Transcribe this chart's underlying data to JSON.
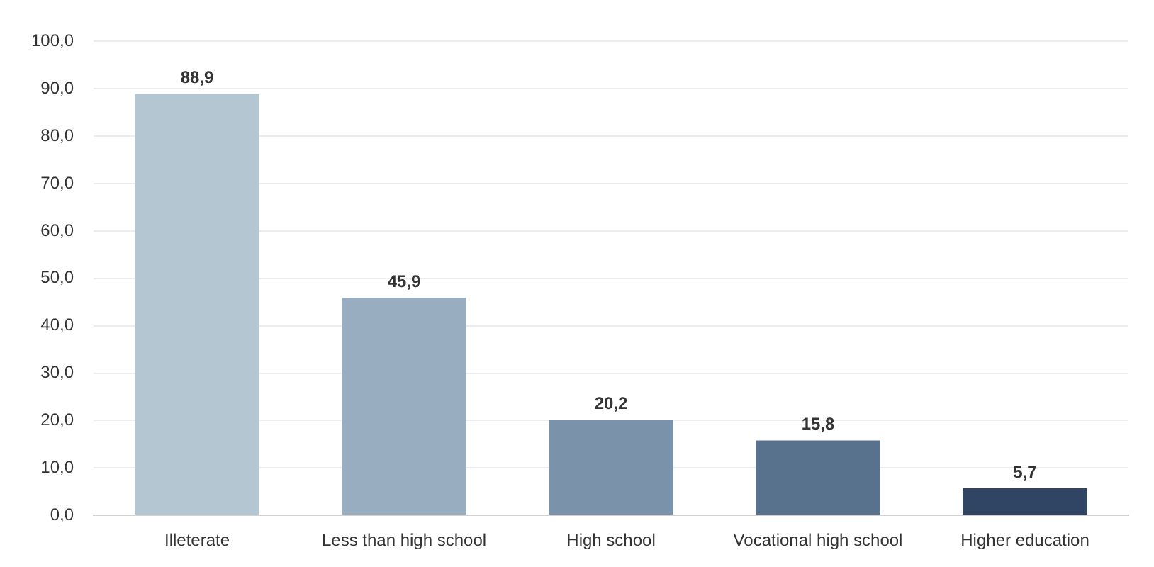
{
  "chart_data": {
    "type": "bar",
    "categories": [
      "Illeterate",
      "Less than high school",
      "High school",
      "Vocational high school",
      "Higher education"
    ],
    "values": [
      88.9,
      45.9,
      20.2,
      15.8,
      5.7
    ],
    "colors": [
      "#b4c6d2",
      "#98aec0",
      "#7a93aa",
      "#58728e",
      "#2f4563"
    ],
    "value_labels": [
      "88,9",
      "45,9",
      "20,2",
      "15,8",
      "5,7"
    ],
    "ylim": [
      0,
      100
    ],
    "yticks": [
      {
        "value": 0,
        "label": "0,0"
      },
      {
        "value": 10,
        "label": "10,0"
      },
      {
        "value": 20,
        "label": "20,0"
      },
      {
        "value": 30,
        "label": "30,0"
      },
      {
        "value": 40,
        "label": "40,0"
      },
      {
        "value": 50,
        "label": "50,0"
      },
      {
        "value": 60,
        "label": "60,0"
      },
      {
        "value": 70,
        "label": "70,0"
      },
      {
        "value": 80,
        "label": "80,0"
      },
      {
        "value": 90,
        "label": "90,0"
      },
      {
        "value": 100,
        "label": "100,0"
      }
    ],
    "grid": "y"
  }
}
